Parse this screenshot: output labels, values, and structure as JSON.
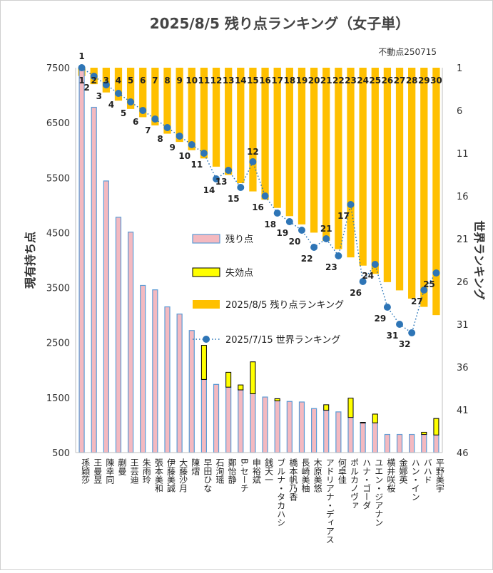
{
  "chart_data": {
    "type": "bar",
    "title": "2025/8/5 残り点ランキング（女子単）",
    "note": "不動点250715",
    "ylabel_left": "現有持ち点",
    "ylabel_right": "世界ランキング",
    "ylim_left": [
      500,
      7500
    ],
    "yticks_left": [
      "500",
      "1500",
      "2500",
      "3500",
      "4500",
      "5500",
      "6500",
      "7500"
    ],
    "ylim_right_reversed": [
      1,
      46
    ],
    "yticks_right": [
      "1",
      "6",
      "11",
      "16",
      "21",
      "26",
      "31",
      "36",
      "41",
      "46"
    ],
    "categories": [
      "孫穎莎",
      "王曼昱",
      "陳幸同",
      "蒯曼",
      "王芸迪",
      "朱雨玲",
      "張本美和",
      "伊藤美誠",
      "大藤沙月",
      "陳熠",
      "早田ひな",
      "石洵瑶",
      "鄭怡静",
      "B.セーチ",
      "申裕斌",
      "銭天一",
      "ブルナ・タカハシ",
      "橋本帆乃香",
      "長崎美柚",
      "木原美悠",
      "アドリアナ・ディアス",
      "何卓佳",
      "ポルカノヴァ",
      "ハナ・ゴーダ",
      "ユエン・ジアナン",
      "横井咲桜",
      "金娜英",
      "ハン・イン",
      "バハド",
      "平野美宇"
    ],
    "series": [
      {
        "name": "残り点",
        "values": [
          7500,
          6780,
          5440,
          4780,
          4510,
          3540,
          3460,
          3150,
          3020,
          2720,
          1830,
          1740,
          1690,
          1640,
          1570,
          1510,
          1440,
          1430,
          1420,
          1300,
          1270,
          1240,
          1140,
          1040,
          1040,
          830,
          830,
          830,
          830,
          820
        ]
      },
      {
        "name": "失効点",
        "values": [
          0,
          0,
          0,
          0,
          0,
          0,
          0,
          0,
          0,
          0,
          620,
          0,
          270,
          90,
          580,
          0,
          40,
          0,
          0,
          0,
          100,
          0,
          350,
          10,
          160,
          0,
          0,
          0,
          40,
          300
        ]
      },
      {
        "name": "2025/8/5 残り点ランキング",
        "values": [
          1,
          2,
          3,
          4,
          5,
          6,
          7,
          8,
          9,
          10,
          11,
          12,
          13,
          14,
          15,
          16,
          17,
          18,
          19,
          20,
          21,
          22,
          23,
          24,
          25,
          26,
          27,
          28,
          29,
          30
        ],
        "top_labels": [
          "1",
          "2",
          "3",
          "4",
          "5",
          "6",
          "7",
          "8",
          "9",
          "10",
          "11",
          "12",
          "13",
          "14",
          "15",
          "16",
          "17",
          "18",
          "19",
          "20",
          "21",
          "22",
          "23",
          "24",
          "25",
          "26",
          "27",
          "28",
          "29",
          "30"
        ]
      },
      {
        "name": "2025/7/15 世界ランキング",
        "values": [
          1,
          2,
          3,
          4,
          5,
          6,
          7,
          8,
          9,
          10,
          11,
          14,
          13,
          15,
          12,
          16,
          18,
          19,
          20,
          22,
          21,
          23,
          17,
          26,
          24,
          29,
          31,
          32,
          27,
          25
        ],
        "labels": [
          "1",
          "2",
          "3",
          "4",
          "5",
          "6",
          "7",
          "8",
          "9",
          "10",
          "11",
          "14",
          "13",
          "15",
          "12",
          "16",
          "18",
          "19",
          "20",
          "22",
          "21",
          "23",
          "17",
          "26",
          "24",
          "29",
          "31",
          "32",
          "27",
          "25"
        ]
      }
    ],
    "legend": {
      "placement": "center",
      "items": [
        "残り点",
        "失効点",
        "2025/8/5 残り点ランキング",
        "2025/7/15 世界ランキング"
      ]
    },
    "colors": {
      "remaining_fill": "#f4b9c0",
      "remaining_stroke": "#5b9bd5",
      "expired_fill": "#ffff00",
      "expired_stroke": "#000000",
      "rank_bar": "#ffc000",
      "world_rank_line": "#1f6fb5",
      "world_rank_marker": "#2e75b6"
    },
    "grid": false
  }
}
